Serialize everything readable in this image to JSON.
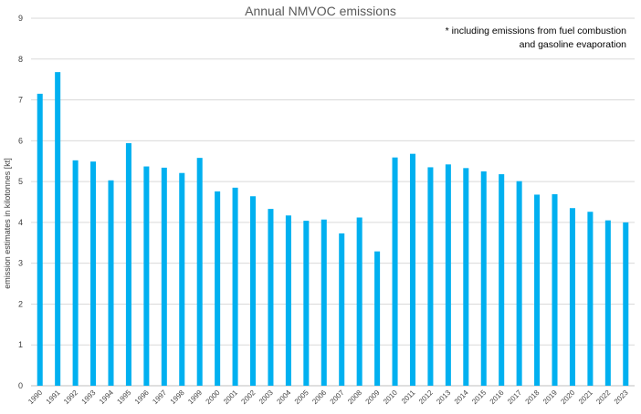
{
  "chart_data": {
    "type": "bar",
    "title": "Annual NMVOC emissions",
    "annotation": [
      "* including emissions from fuel combustion",
      "and gasoline evaporation"
    ],
    "xlabel": "",
    "ylabel": "emission estimates in kilotonnes [kt]",
    "ylim": [
      0,
      9
    ],
    "yticks": [
      "0",
      "1",
      "2",
      "3",
      "4",
      "5",
      "6",
      "7",
      "8",
      "9"
    ],
    "grid": true,
    "legend": "none",
    "bar_color": "#00b0f0",
    "categories": [
      "1990",
      "1991",
      "1992",
      "1993",
      "1994",
      "1995",
      "1996",
      "1997",
      "1998",
      "1999",
      "2000",
      "2001",
      "2002",
      "2003",
      "2004",
      "2005",
      "2006",
      "2007",
      "2008",
      "2009",
      "2010",
      "2011",
      "2012",
      "2013",
      "2014",
      "2015",
      "2016",
      "2017",
      "2018",
      "2019",
      "2020",
      "2021",
      "2022",
      "2023"
    ],
    "values": [
      7.15,
      7.68,
      5.52,
      5.49,
      5.03,
      5.94,
      5.37,
      5.34,
      5.21,
      5.58,
      4.76,
      4.85,
      4.64,
      4.33,
      4.17,
      4.04,
      4.07,
      3.73,
      4.12,
      3.29,
      5.59,
      5.68,
      5.35,
      5.42,
      5.33,
      5.25,
      5.18,
      5.01,
      4.68,
      4.69,
      4.35,
      4.26,
      4.05,
      4.0
    ]
  }
}
